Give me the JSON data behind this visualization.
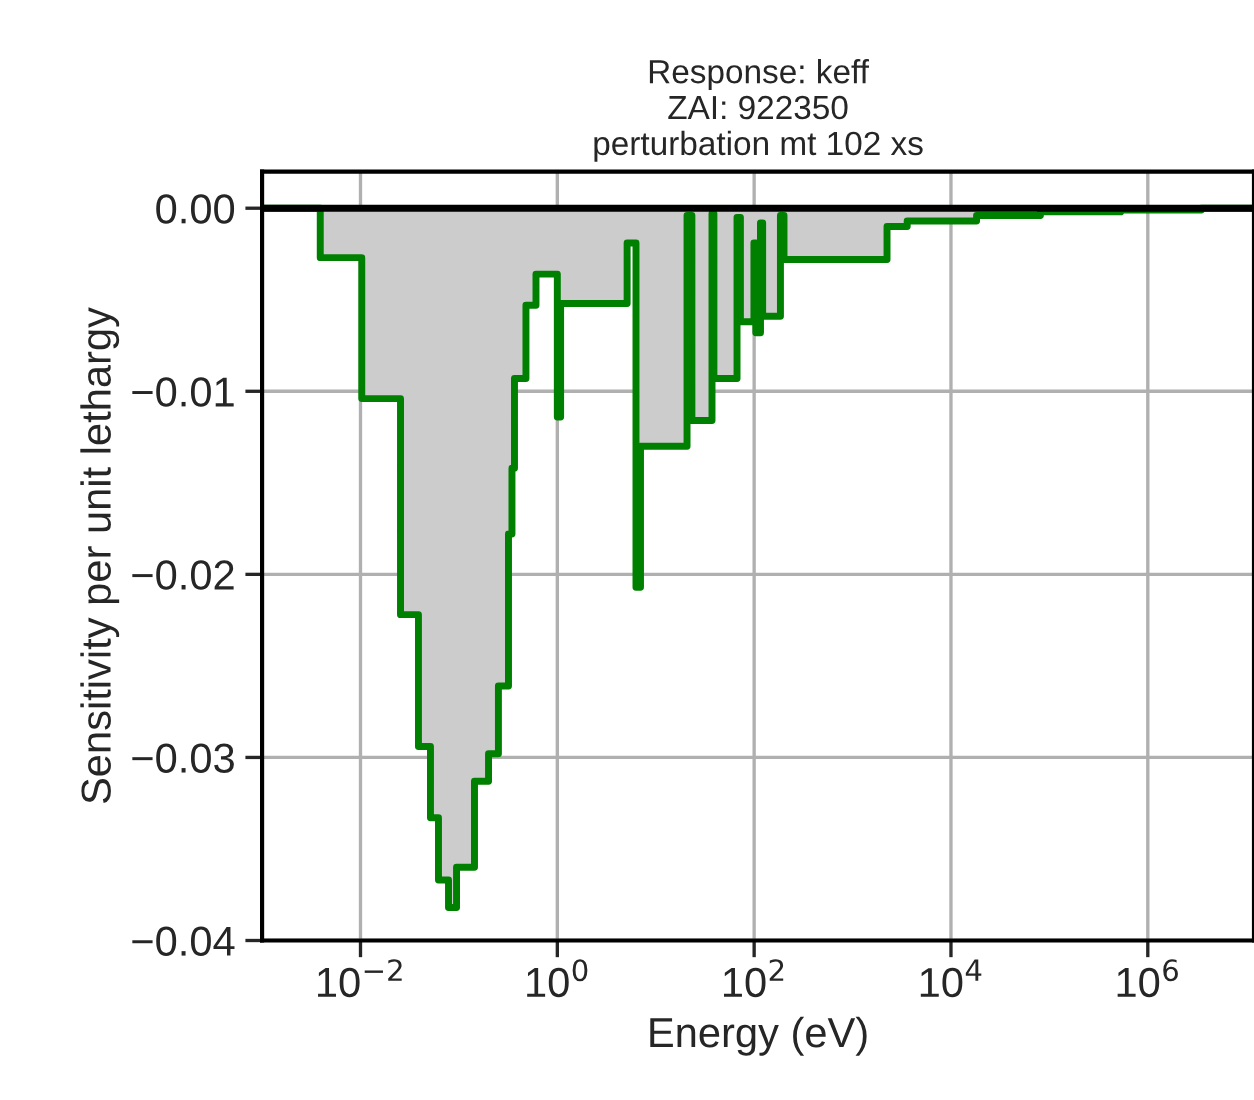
{
  "chart_data": {
    "type": "step",
    "title": "Response: keff\nZAI: 922350\nperturbation mt 102 xs",
    "xlabel": "Energy (eV)",
    "ylabel": "Sensitivity per unit lethargy",
    "log": "x",
    "grid": true,
    "xlim": [
      0.001,
      12000000
    ],
    "xticks": [
      {
        "value": 0.01,
        "label": "10$^{−2}$"
      },
      {
        "value": 1,
        "label": "10$^{0}$"
      },
      {
        "value": 100,
        "label": "10$^{2}$"
      },
      {
        "value": 10000,
        "label": "10$^{4}$"
      },
      {
        "value": 1000000,
        "label": "10$^{6}$"
      }
    ],
    "ylim": [
      -0.04,
      0.002
    ],
    "yticks": [
      {
        "value": 0,
        "label": "0.00"
      },
      {
        "value": -0.01,
        "label": "−0.01"
      },
      {
        "value": -0.02,
        "label": "−0.02"
      },
      {
        "value": -0.03,
        "label": "−0.03"
      },
      {
        "value": -0.04,
        "label": "−0.04"
      }
    ],
    "ref_lines": [
      {
        "axis": "y",
        "value": 0,
        "color": "#000000"
      }
    ],
    "series": [
      {
        "color": "#008000",
        "x": [
          0.001,
          0.0039,
          0.0103,
          0.0255,
          0.0388,
          0.0514,
          0.062,
          0.0784,
          0.0946,
          0.144,
          0.2,
          0.252,
          0.319,
          0.346,
          0.367,
          0.48,
          0.607,
          1.0,
          1.08,
          5.12,
          6.3,
          7.0,
          20.8,
          23.3,
          37.3,
          39,
          67,
          72.5,
          99.5,
          104,
          116,
          122,
          185,
          201,
          2240,
          3590,
          18200,
          81000,
          530000,
          3500000,
          12000000
        ],
        "values": [
          0,
          -0.0027,
          -0.0104,
          -0.0222,
          -0.0294,
          -0.0333,
          -0.0367,
          -0.0382,
          -0.036,
          -0.0313,
          -0.0298,
          -0.0261,
          -0.0178,
          -0.0142,
          -0.0093,
          -0.0053,
          -0.0036,
          -0.0114,
          -0.0052,
          -0.0019,
          -0.0207,
          -0.013,
          -0.0004,
          -0.0116,
          -0.0003,
          -0.0093,
          -0.0005,
          -0.0062,
          -0.0019,
          -0.0068,
          -0.0008,
          -0.0059,
          -0.0004,
          -0.0028,
          -0.001,
          -0.0007,
          -0.0004,
          -0.0002,
          -0.0001,
          0,
          0
        ]
      }
    ]
  }
}
